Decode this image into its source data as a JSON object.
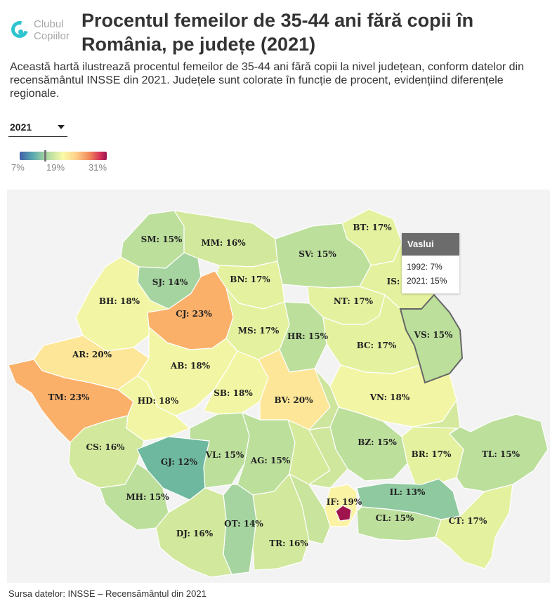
{
  "brand": {
    "line1": "Clubul",
    "line2": "Copiilor"
  },
  "title": "Procentul femeilor de 35-44 ani fără copii în România, pe județe (2021)",
  "subtitle": "Această hartă ilustrează procentul femeilor de 35-44 ani fără copii la nivel județean, conform datelor din recensământul INSSE din 2021. Județele sunt colorate în funcție de procent, evidențiind diferențele regionale.",
  "year_select": {
    "value": "2021"
  },
  "legend": {
    "min": "7%",
    "mid": "19%",
    "max": "31%",
    "marker_value": 12
  },
  "colors": {
    "c12": "#6fb8a0",
    "c13": "#8ec9a0",
    "c14": "#a6d4a0",
    "c15": "#bcdf9c",
    "c16": "#d2e89c",
    "c17": "#e4f19f",
    "c18": "#f2f6a4",
    "c19": "#fbf3a4",
    "c20": "#fde698",
    "c23": "#fbb06a",
    "c31": "#a0144e"
  },
  "counties": [
    {
      "code": "SM",
      "label": "SM: 15%",
      "value": 15
    },
    {
      "code": "MM",
      "label": "MM: 16%",
      "value": 16
    },
    {
      "code": "BT",
      "label": "BT: 17%",
      "value": 17
    },
    {
      "code": "SV",
      "label": "SV: 15%",
      "value": 15
    },
    {
      "code": "SJ",
      "label": "SJ: 14%",
      "value": 14
    },
    {
      "code": "BN",
      "label": "BN: 17%",
      "value": 17
    },
    {
      "code": "IS",
      "label": "IS:",
      "value": null
    },
    {
      "code": "BH",
      "label": "BH: 18%",
      "value": 18
    },
    {
      "code": "CJ",
      "label": "CJ: 23%",
      "value": 23
    },
    {
      "code": "NT",
      "label": "NT: 17%",
      "value": 17
    },
    {
      "code": "MS",
      "label": "MS: 17%",
      "value": 17
    },
    {
      "code": "HR",
      "label": "HR: 15%",
      "value": 15
    },
    {
      "code": "VS",
      "label": "VS: 15%",
      "value": 15
    },
    {
      "code": "BC",
      "label": "BC: 17%",
      "value": 17
    },
    {
      "code": "AR",
      "label": "AR: 20%",
      "value": 20
    },
    {
      "code": "AB",
      "label": "AB: 18%",
      "value": 18
    },
    {
      "code": "SB",
      "label": "SB: 18%",
      "value": 18
    },
    {
      "code": "TM",
      "label": "TM: 23%",
      "value": 23
    },
    {
      "code": "HD",
      "label": "HD: 18%",
      "value": 18
    },
    {
      "code": "BV",
      "label": "BV: 20%",
      "value": 20
    },
    {
      "code": "VN",
      "label": "VN: 18%",
      "value": 18
    },
    {
      "code": "BZ",
      "label": "BZ: 15%",
      "value": 15
    },
    {
      "code": "CS",
      "label": "CS: 16%",
      "value": 16
    },
    {
      "code": "GJ",
      "label": "GJ: 12%",
      "value": 12
    },
    {
      "code": "VL",
      "label": "VL: 15%",
      "value": 15
    },
    {
      "code": "AG",
      "label": "AG: 15%",
      "value": 15
    },
    {
      "code": "BR",
      "label": "BR: 17%",
      "value": 17
    },
    {
      "code": "TL",
      "label": "TL: 15%",
      "value": 15
    },
    {
      "code": "MH",
      "label": "MH: 15%",
      "value": 15
    },
    {
      "code": "IF",
      "label": "IF: 19%",
      "value": 19
    },
    {
      "code": "IL",
      "label": "IL: 13%",
      "value": 13
    },
    {
      "code": "OT",
      "label": "OT: 14%",
      "value": 14
    },
    {
      "code": "CL",
      "label": "CL: 15%",
      "value": 15
    },
    {
      "code": "CT",
      "label": "CT: 17%",
      "value": 17
    },
    {
      "code": "DJ",
      "label": "DJ: 16%",
      "value": 16
    },
    {
      "code": "TR",
      "label": "TR: 16%",
      "value": 16
    }
  ],
  "tooltip": {
    "title": "Vaslui",
    "row1": "1992: 7%",
    "row2": "2021: 15%"
  },
  "source": "Sursa datelor: INSSE – Recensământul din 2021"
}
